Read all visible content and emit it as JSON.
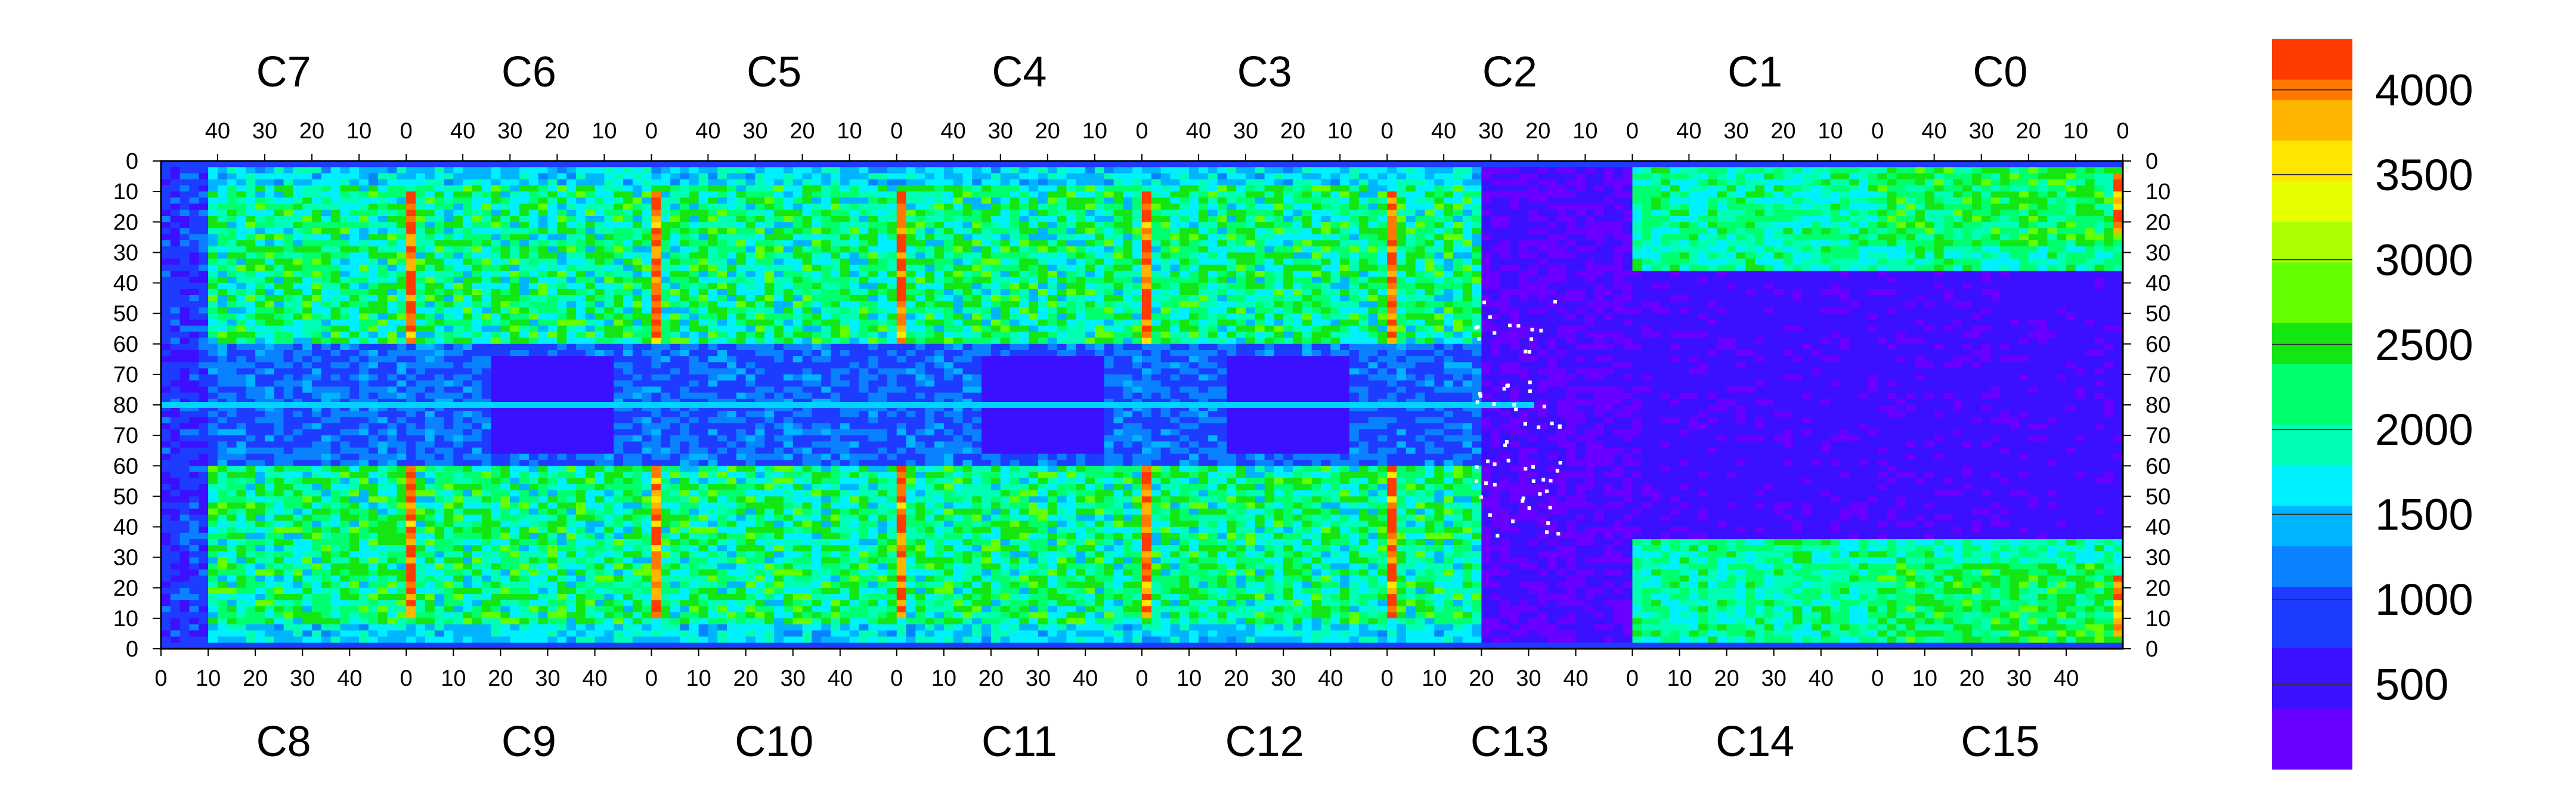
{
  "chart_data": {
    "type": "heatmap",
    "title": "",
    "chips": {
      "top_labels": [
        "C7",
        "C6",
        "C5",
        "C4",
        "C3",
        "C2",
        "C1",
        "C0"
      ],
      "bottom_labels": [
        "C8",
        "C9",
        "C10",
        "C11",
        "C12",
        "C13",
        "C14",
        "C15"
      ]
    },
    "x_axis": {
      "top_ticks": [
        "40",
        "30",
        "20",
        "10",
        "0"
      ],
      "bottom_ticks": [
        "0",
        "10",
        "20",
        "30",
        "40"
      ],
      "columns_per_chip": 52
    },
    "y_axis": {
      "tick_labels": [
        "0",
        "10",
        "20",
        "30",
        "40",
        "50",
        "60",
        "70",
        "80",
        "70",
        "60",
        "50",
        "40",
        "30",
        "20",
        "10",
        "0"
      ],
      "rows_per_half": 80
    },
    "colorbar": {
      "range": [
        0,
        4300
      ],
      "tick_values": [
        500,
        1000,
        1500,
        2000,
        2500,
        3000,
        3500,
        4000
      ],
      "tick_labels": [
        "500",
        "1000",
        "1500",
        "2000",
        "2500",
        "3000",
        "3500",
        "4000"
      ]
    },
    "legend_placement": "right",
    "grid": false,
    "regions": [
      {
        "cols": "C7/C8 left border",
        "rows": "all",
        "value": 800
      },
      {
        "cols": "C7-C4 body",
        "rows": "upper 15-60",
        "value": 1900
      },
      {
        "cols": "C7-C4 body",
        "rows": "lower 5-60",
        "value": 1700
      },
      {
        "cols": "C7-C3",
        "rows": "middle band 62-80",
        "value": 900
      },
      {
        "cols": "C13 right/C14",
        "rows": "all",
        "value": 300
      },
      {
        "cols": "C1/C0 and C14/C15",
        "rows": "middle",
        "value": 400
      },
      {
        "cols": "chip boundaries C7|C6 ... C3|C2",
        "rows": "15-62",
        "value": 4100
      }
    ]
  }
}
